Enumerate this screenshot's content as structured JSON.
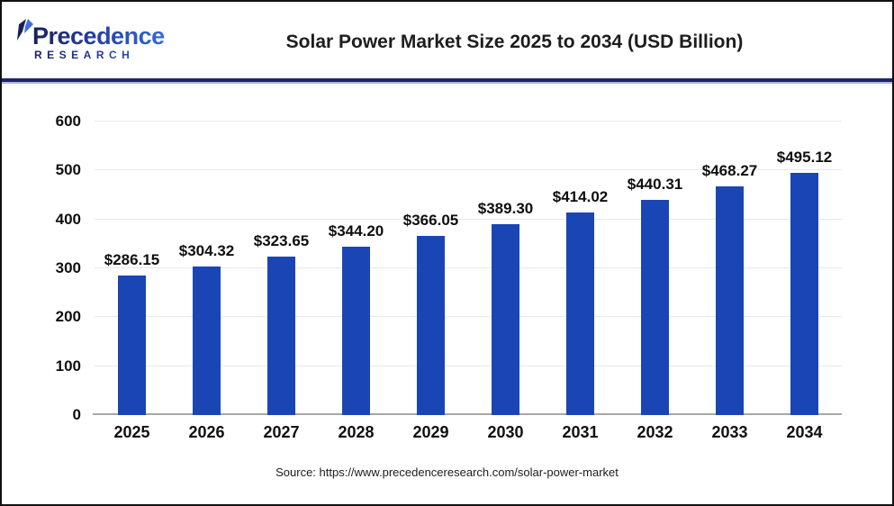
{
  "header": {
    "logo_text": "Precedence",
    "logo_subtext": "RESEARCH",
    "title": "Solar Power Market Size 2025 to 2034 (USD Billion)"
  },
  "chart_data": {
    "type": "bar",
    "title": "Solar Power Market Size 2025 to 2034 (USD Billion)",
    "unit": "USD Billion",
    "categories": [
      "2025",
      "2026",
      "2027",
      "2028",
      "2029",
      "2030",
      "2031",
      "2032",
      "2033",
      "2034"
    ],
    "values": [
      286.15,
      304.32,
      323.65,
      344.2,
      366.05,
      389.3,
      414.02,
      440.31,
      468.27,
      495.12
    ],
    "value_labels": [
      "$286.15",
      "$304.32",
      "$323.65",
      "$344.20",
      "$366.05",
      "$389.30",
      "$414.02",
      "$440.31",
      "$468.27",
      "$495.12"
    ],
    "xlabel": "",
    "ylabel": "",
    "ylim": [
      0,
      600
    ],
    "yticks": [
      0,
      100,
      200,
      300,
      400,
      500,
      600
    ],
    "grid": true,
    "legend_position": "none",
    "bar_color": "#1a45b5",
    "grid_color": "#e8e8e8",
    "axis_color": "#a8a8a8"
  },
  "footer": {
    "source": "Source: https://www.precedenceresearch.com/solar-power-market"
  }
}
